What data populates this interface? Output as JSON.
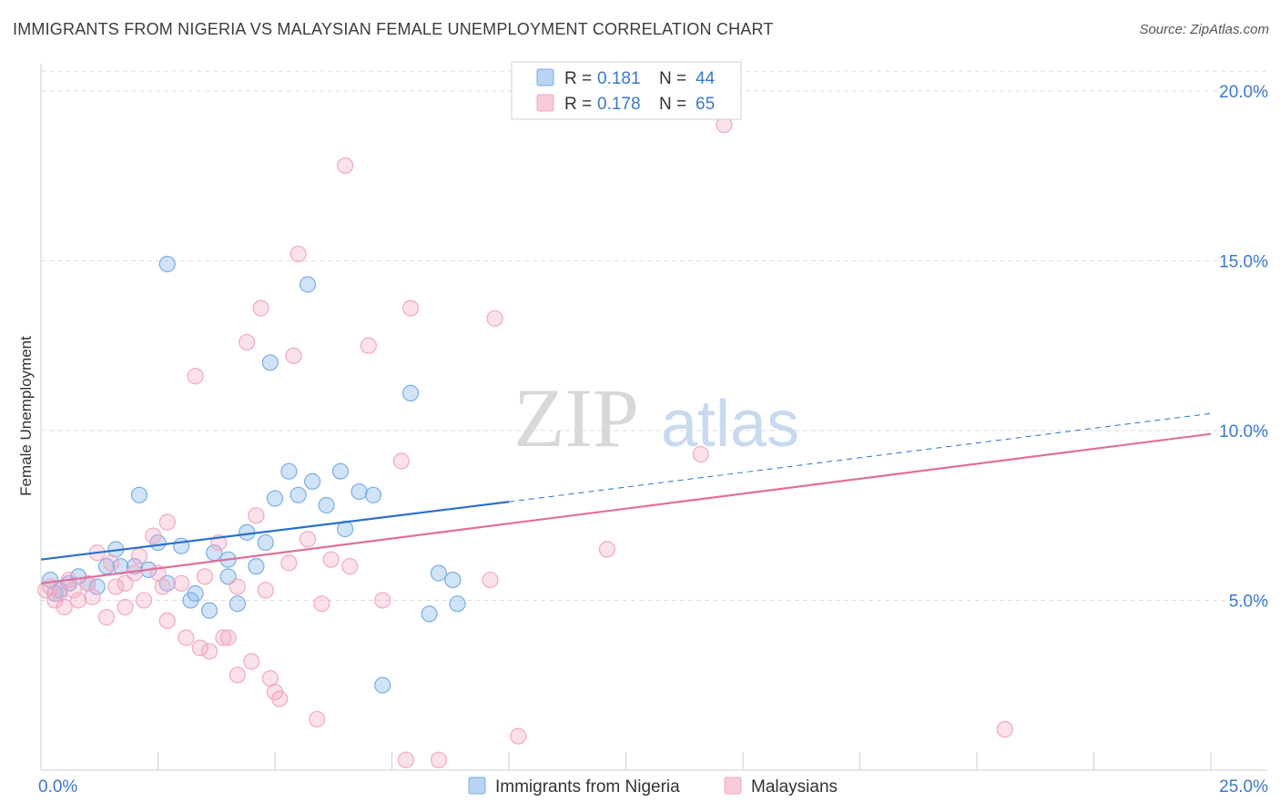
{
  "title": "IMMIGRANTS FROM NIGERIA VS MALAYSIAN FEMALE UNEMPLOYMENT CORRELATION CHART",
  "source": "Source: ZipAtlas.com",
  "watermark": {
    "zip": "ZIP",
    "atlas": "atlas"
  },
  "chart_data": {
    "type": "scatter",
    "xlabel": "",
    "ylabel": "Female Unemployment",
    "xlim": [
      0,
      25
    ],
    "ylim": [
      0,
      20.8
    ],
    "x_tick_labels": [
      {
        "value": 0,
        "label": "0.0%"
      },
      {
        "value": 25,
        "label": "25.0%"
      }
    ],
    "y_tick_labels": [
      {
        "value": 5,
        "label": "5.0%"
      },
      {
        "value": 10,
        "label": "10.0%"
      },
      {
        "value": 15,
        "label": "15.0%"
      },
      {
        "value": 20,
        "label": "20.0%"
      }
    ],
    "grid": true,
    "legend_placement": "top-center",
    "series": [
      {
        "name": "Immigrants from Nigeria",
        "color": "#7aaee8",
        "line_color": "#2a6fcc",
        "R": "0.181",
        "N": "44",
        "trend": {
          "x0": 0,
          "y0": 6.2,
          "x1": 10,
          "y1": 7.9,
          "dashed_to_x": 25,
          "dashed_to_y": 10.5
        },
        "points": [
          [
            0.2,
            5.6
          ],
          [
            0.4,
            5.3
          ],
          [
            0.6,
            5.5
          ],
          [
            0.8,
            5.7
          ],
          [
            1.0,
            5.5
          ],
          [
            1.2,
            5.4
          ],
          [
            1.4,
            6.0
          ],
          [
            1.6,
            6.5
          ],
          [
            1.7,
            6.0
          ],
          [
            2.0,
            6.0
          ],
          [
            2.1,
            8.1
          ],
          [
            2.3,
            5.9
          ],
          [
            2.5,
            6.7
          ],
          [
            2.7,
            5.5
          ],
          [
            2.7,
            14.9
          ],
          [
            3.0,
            6.6
          ],
          [
            3.2,
            5.0
          ],
          [
            3.3,
            5.2
          ],
          [
            3.6,
            4.7
          ],
          [
            3.7,
            6.4
          ],
          [
            4.0,
            6.2
          ],
          [
            4.0,
            5.7
          ],
          [
            4.2,
            4.9
          ],
          [
            4.4,
            7.0
          ],
          [
            4.6,
            6.0
          ],
          [
            4.8,
            6.7
          ],
          [
            4.9,
            12.0
          ],
          [
            5.0,
            8.0
          ],
          [
            5.3,
            8.8
          ],
          [
            5.5,
            8.1
          ],
          [
            5.7,
            14.3
          ],
          [
            5.8,
            8.5
          ],
          [
            6.1,
            7.8
          ],
          [
            6.4,
            8.8
          ],
          [
            6.5,
            7.1
          ],
          [
            6.8,
            8.2
          ],
          [
            7.1,
            8.1
          ],
          [
            7.3,
            2.5
          ],
          [
            7.9,
            11.1
          ],
          [
            8.3,
            4.6
          ],
          [
            8.5,
            5.8
          ],
          [
            8.8,
            5.6
          ],
          [
            8.9,
            4.9
          ],
          [
            0.3,
            5.2
          ]
        ]
      },
      {
        "name": "Malaysians",
        "color": "#f3a8c2",
        "line_color": "#e0709a",
        "R": "0.178",
        "N": "65",
        "trend": {
          "x0": 0,
          "y0": 5.5,
          "x1": 25,
          "y1": 9.9
        },
        "points": [
          [
            0.2,
            5.4
          ],
          [
            0.3,
            5.0
          ],
          [
            0.4,
            5.2
          ],
          [
            0.5,
            4.8
          ],
          [
            0.6,
            5.6
          ],
          [
            0.7,
            5.3
          ],
          [
            0.8,
            5.0
          ],
          [
            1.0,
            5.5
          ],
          [
            1.1,
            5.1
          ],
          [
            1.2,
            6.4
          ],
          [
            1.4,
            4.5
          ],
          [
            1.5,
            6.1
          ],
          [
            1.6,
            5.4
          ],
          [
            1.8,
            5.5
          ],
          [
            1.8,
            4.8
          ],
          [
            2.0,
            5.8
          ],
          [
            2.1,
            6.3
          ],
          [
            2.2,
            5.0
          ],
          [
            2.4,
            6.9
          ],
          [
            2.5,
            5.8
          ],
          [
            2.6,
            5.4
          ],
          [
            2.7,
            7.3
          ],
          [
            2.7,
            4.4
          ],
          [
            3.0,
            5.5
          ],
          [
            3.1,
            3.9
          ],
          [
            3.3,
            11.6
          ],
          [
            3.4,
            3.6
          ],
          [
            3.5,
            5.7
          ],
          [
            3.6,
            3.5
          ],
          [
            3.8,
            6.7
          ],
          [
            3.9,
            3.9
          ],
          [
            4.0,
            3.9
          ],
          [
            4.2,
            5.4
          ],
          [
            4.2,
            2.8
          ],
          [
            4.4,
            12.6
          ],
          [
            4.5,
            3.2
          ],
          [
            4.6,
            7.5
          ],
          [
            4.7,
            13.6
          ],
          [
            4.8,
            5.3
          ],
          [
            4.9,
            2.7
          ],
          [
            5.0,
            2.3
          ],
          [
            5.1,
            2.1
          ],
          [
            5.3,
            6.1
          ],
          [
            5.4,
            12.2
          ],
          [
            5.5,
            15.2
          ],
          [
            5.7,
            6.8
          ],
          [
            5.9,
            1.5
          ],
          [
            6.0,
            4.9
          ],
          [
            6.2,
            6.2
          ],
          [
            6.5,
            17.8
          ],
          [
            6.6,
            6.0
          ],
          [
            7.0,
            12.5
          ],
          [
            7.3,
            5.0
          ],
          [
            7.7,
            9.1
          ],
          [
            7.8,
            0.3
          ],
          [
            7.9,
            13.6
          ],
          [
            8.5,
            0.3
          ],
          [
            9.6,
            5.6
          ],
          [
            9.7,
            13.3
          ],
          [
            10.2,
            1.0
          ],
          [
            12.1,
            6.5
          ],
          [
            14.1,
            9.3
          ],
          [
            14.6,
            19.0
          ],
          [
            20.6,
            1.2
          ],
          [
            0.1,
            5.3
          ]
        ]
      }
    ]
  }
}
